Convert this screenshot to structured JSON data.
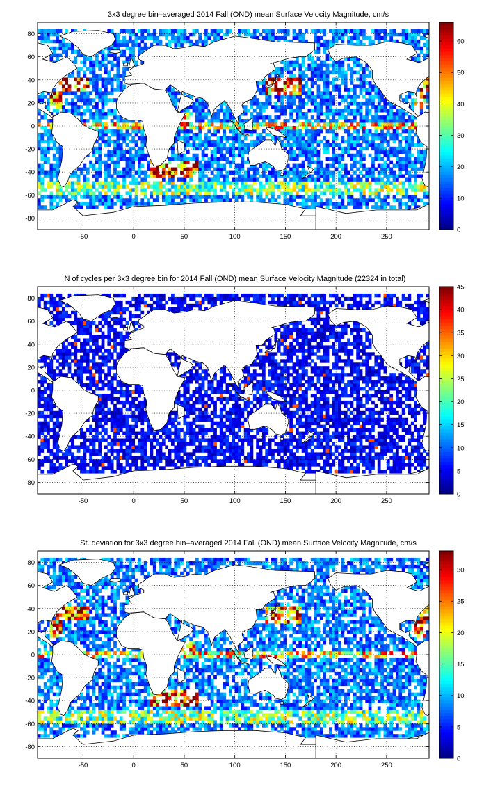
{
  "chart_data": [
    {
      "type": "heatmap",
      "title": "3x3 degree bin–averaged 2014 Fall (OND) mean Surface Velocity Magnitude, cm/s",
      "x_ticks": [
        "-50",
        "0",
        "50",
        "100",
        "150",
        "200",
        "250"
      ],
      "y_ticks": [
        "80",
        "60",
        "40",
        "20",
        "0",
        "-20",
        "-40",
        "-60",
        "-80"
      ],
      "xlim": [
        -95,
        292
      ],
      "ylim": [
        -90,
        90
      ],
      "grid": true,
      "colorbar": {
        "range": [
          0,
          66
        ],
        "ticks": [
          "60",
          "50",
          "40",
          "30",
          "20",
          "10",
          "0"
        ]
      },
      "bin_size_deg": 3,
      "typical_value": 16,
      "max_value": 66
    },
    {
      "type": "heatmap",
      "title": "N of cycles per 3x3 degree bin for 2014 Fall (OND) mean Surface Velocity Magnitude (22324 in total)",
      "x_ticks": [
        "-50",
        "0",
        "50",
        "100",
        "150",
        "200",
        "250"
      ],
      "y_ticks": [
        "80",
        "60",
        "40",
        "20",
        "0",
        "-20",
        "-40",
        "-60",
        "-80"
      ],
      "xlim": [
        -95,
        292
      ],
      "ylim": [
        -90,
        90
      ],
      "grid": true,
      "colorbar": {
        "range": [
          0,
          45
        ],
        "ticks": [
          "45",
          "40",
          "35",
          "30",
          "25",
          "20",
          "15",
          "10",
          "5",
          "0"
        ]
      },
      "bin_size_deg": 3,
      "typical_value": 6,
      "max_value": 45
    },
    {
      "type": "heatmap",
      "title": "St. deviation for 3x3 degree bin–averaged 2014 Fall (OND) mean Surface Velocity Magnitude, cm/s",
      "x_ticks": [
        "-50",
        "0",
        "50",
        "100",
        "150",
        "200",
        "250"
      ],
      "y_ticks": [
        "80",
        "60",
        "40",
        "20",
        "0",
        "-20",
        "-40",
        "-60",
        "-80"
      ],
      "xlim": [
        -95,
        292
      ],
      "ylim": [
        -90,
        90
      ],
      "grid": true,
      "colorbar": {
        "range": [
          0,
          33
        ],
        "ticks": [
          "30",
          "25",
          "20",
          "15",
          "10",
          "5",
          "0"
        ]
      },
      "bin_size_deg": 3,
      "typical_value": 8,
      "max_value": 33
    }
  ]
}
